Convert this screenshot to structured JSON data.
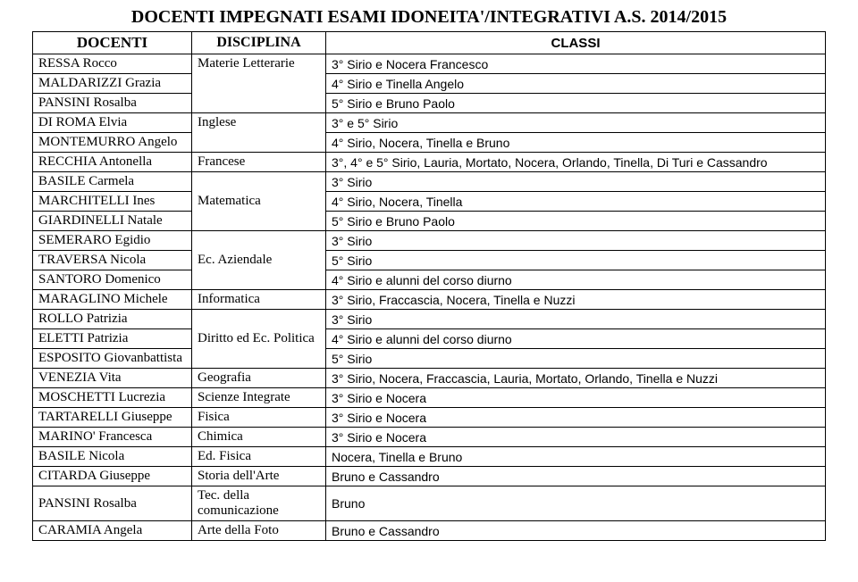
{
  "title": "DOCENTI IMPEGNATI ESAMI IDONEITA'/INTEGRATIVI A.S. 2014/2015",
  "headers": {
    "docenti": "DOCENTI",
    "disciplina": "DISCIPLINA",
    "classi": "CLASSI"
  },
  "rows": [
    {
      "name": "RESSA Rocco",
      "classi": "3° Sirio e Nocera Francesco"
    },
    {
      "name": "MALDARIZZI Grazia",
      "classi": "4° Sirio e Tinella Angelo"
    },
    {
      "name": "PANSINI Rosalba",
      "classi": "5° Sirio e Bruno Paolo"
    },
    {
      "name": "DI ROMA Elvia",
      "classi": "3° e 5° Sirio"
    },
    {
      "name": "MONTEMURRO Angelo",
      "classi": "4° Sirio, Nocera, Tinella e Bruno"
    },
    {
      "name": "RECCHIA Antonella",
      "classi": "3°, 4° e 5° Sirio, Lauria, Mortato, Nocera, Orlando, Tinella, Di Turi e Cassandro"
    },
    {
      "name": "BASILE Carmela",
      "classi": "3° Sirio"
    },
    {
      "name": "MARCHITELLI Ines",
      "classi": "4° Sirio, Nocera, Tinella"
    },
    {
      "name": "GIARDINELLI Natale",
      "classi": "5° Sirio e Bruno Paolo"
    },
    {
      "name": "SEMERARO Egidio",
      "classi": "3° Sirio"
    },
    {
      "name": "TRAVERSA Nicola",
      "classi": "5° Sirio"
    },
    {
      "name": "SANTORO Domenico",
      "classi": "4° Sirio e alunni del corso diurno"
    },
    {
      "name": "MARAGLINO Michele",
      "classi": "3° Sirio, Fraccascia, Nocera, Tinella e Nuzzi"
    },
    {
      "name": "ROLLO Patrizia",
      "classi": "3°  Sirio"
    },
    {
      "name": "ELETTI Patrizia",
      "classi": "4° Sirio e alunni del corso diurno"
    },
    {
      "name": "ESPOSITO Giovanbattista",
      "classi": "5° Sirio"
    },
    {
      "name": "VENEZIA Vita",
      "classi": "3° Sirio, Nocera, Fraccascia, Lauria, Mortato, Orlando, Tinella e Nuzzi"
    },
    {
      "name": "MOSCHETTI Lucrezia",
      "classi": "3° Sirio e Nocera"
    },
    {
      "name": "TARTARELLI Giuseppe",
      "classi": "3° Sirio e Nocera"
    },
    {
      "name": "MARINO' Francesca",
      "classi": "3° Sirio e Nocera"
    },
    {
      "name": "BASILE Nicola",
      "classi": "Nocera, Tinella e Bruno"
    },
    {
      "name": "CITARDA Giuseppe",
      "classi": "Bruno e Cassandro"
    },
    {
      "name": "PANSINI Rosalba",
      "classi": "Bruno"
    },
    {
      "name": "CARAMIA Angela",
      "classi": "Bruno e Cassandro"
    }
  ],
  "disciplines": {
    "d0": {
      "label": "Materie Letterarie",
      "start": 0,
      "span": 3
    },
    "d1": {
      "label": "Inglese",
      "start": 3,
      "span": 2
    },
    "d2": {
      "label": "Francese",
      "start": 5,
      "span": 1
    },
    "d3": {
      "label": "Matematica",
      "start": 6,
      "span": 3
    },
    "d4": {
      "label": "Ec. Aziendale",
      "start": 9,
      "span": 3
    },
    "d5": {
      "label": "Informatica",
      "start": 12,
      "span": 1
    },
    "d6": {
      "label": "Diritto ed Ec. Politica",
      "start": 13,
      "span": 3
    },
    "d7": {
      "label": "Geografia",
      "start": 16,
      "span": 1
    },
    "d8": {
      "label": "Scienze Integrate",
      "start": 17,
      "span": 1
    },
    "d9": {
      "label": "Fisica",
      "start": 18,
      "span": 1
    },
    "d10": {
      "label": "Chimica",
      "start": 19,
      "span": 1
    },
    "d11": {
      "label": "Ed. Fisica",
      "start": 20,
      "span": 1
    },
    "d12": {
      "label": "Storia dell'Arte",
      "start": 21,
      "span": 1
    },
    "d13": {
      "label": "Tec. della comunicazione",
      "start": 22,
      "span": 1
    },
    "d14": {
      "label": "Arte della Foto",
      "start": 23,
      "span": 1
    }
  },
  "disc_valign": {
    "d3": "middle",
    "d4": "middle",
    "d6": "middle",
    "d13": "bottom"
  },
  "colors": {
    "text": "#000000",
    "bg": "#ffffff",
    "border": "#000000"
  }
}
